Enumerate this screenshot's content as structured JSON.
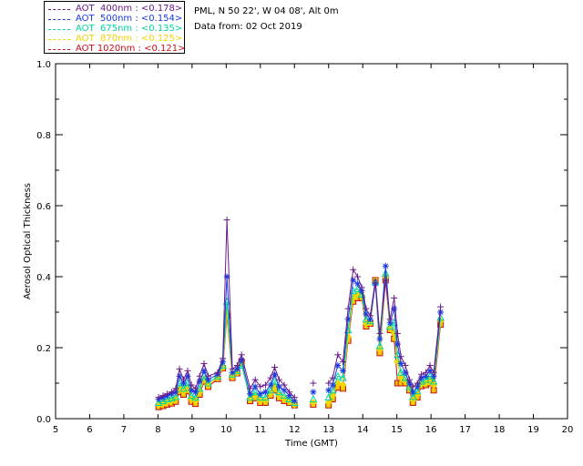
{
  "info": {
    "site": "PML, N 50 22', W 04 08', Alt 0m",
    "date": "Data from: 02 Oct 2019"
  },
  "legend": [
    {
      "label": "AOT  400nm : <0.178>",
      "color": "#6a1a8a"
    },
    {
      "label": "AOT  500nm : <0.154>",
      "color": "#1a3be0"
    },
    {
      "label": "AOT  675nm : <0.135>",
      "color": "#00d4a0"
    },
    {
      "label": "AOT  870nm : <0.125>",
      "color": "#f2d600"
    },
    {
      "label": "AOT 1020nm : <0.121>",
      "color": "#c8101a"
    }
  ],
  "chart_data": {
    "type": "line",
    "title": "",
    "xlabel": "Time (GMT)",
    "ylabel": "Aerosol Optical Thickness",
    "xlim": [
      5,
      20
    ],
    "ylim": [
      0,
      1.0
    ],
    "xticks": [
      "5",
      "6",
      "7",
      "8",
      "9",
      "10",
      "11",
      "12",
      "13",
      "14",
      "15",
      "16",
      "17",
      "18",
      "19",
      "20"
    ],
    "yticks": [
      "0.0",
      "0.2",
      "0.4",
      "0.6",
      "0.8",
      "1.0"
    ],
    "series": [
      {
        "name": "AOT  400nm : <0.178>",
        "color": "#6a1a8a",
        "marker": "plus",
        "points": [
          [
            8.02,
            0.06
          ],
          [
            8.15,
            0.065
          ],
          [
            8.27,
            0.07
          ],
          [
            8.4,
            0.075
          ],
          [
            8.52,
            0.085
          ],
          [
            8.63,
            0.14
          ],
          [
            8.75,
            0.11
          ],
          [
            8.87,
            0.135
          ],
          [
            8.98,
            0.095
          ],
          [
            9.1,
            0.085
          ],
          [
            9.22,
            0.12
          ],
          [
            9.35,
            0.155
          ],
          [
            9.47,
            0.12
          ],
          [
            9.75,
            0.13
          ],
          [
            9.9,
            0.17
          ],
          [
            10.02,
            0.56
          ],
          [
            10.18,
            0.14
          ],
          [
            10.32,
            0.15
          ],
          [
            10.45,
            0.18
          ],
          [
            10.7,
            0.085
          ],
          [
            10.85,
            0.11
          ],
          [
            11.0,
            0.09
          ],
          [
            11.15,
            0.095
          ],
          [
            11.3,
            0.115
          ],
          [
            11.42,
            0.145
          ],
          [
            11.55,
            0.11
          ],
          [
            11.7,
            0.095
          ],
          [
            11.85,
            0.075
          ],
          [
            12.0,
            0.06
          ],
          [
            12.55,
            0.1
          ],
          [
            13.0,
            0.1
          ],
          [
            13.12,
            0.115
          ],
          [
            13.27,
            0.18
          ],
          [
            13.42,
            0.16
          ],
          [
            13.57,
            0.31
          ],
          [
            13.72,
            0.42
          ],
          [
            13.85,
            0.4
          ],
          [
            13.97,
            0.37
          ],
          [
            14.1,
            0.31
          ],
          [
            14.22,
            0.29
          ],
          [
            14.37,
            0.39
          ],
          [
            14.5,
            0.24
          ],
          [
            14.67,
            0.39
          ],
          [
            14.8,
            0.28
          ],
          [
            14.92,
            0.34
          ],
          [
            15.02,
            0.24
          ],
          [
            15.12,
            0.175
          ],
          [
            15.25,
            0.15
          ],
          [
            15.37,
            0.11
          ],
          [
            15.47,
            0.09
          ],
          [
            15.6,
            0.1
          ],
          [
            15.72,
            0.125
          ],
          [
            15.85,
            0.13
          ],
          [
            15.97,
            0.15
          ],
          [
            16.08,
            0.13
          ],
          [
            16.28,
            0.315
          ]
        ]
      },
      {
        "name": "AOT  500nm : <0.154>",
        "color": "#1a3be0",
        "marker": "star",
        "points": [
          [
            8.02,
            0.055
          ],
          [
            8.15,
            0.06
          ],
          [
            8.27,
            0.065
          ],
          [
            8.4,
            0.07
          ],
          [
            8.52,
            0.075
          ],
          [
            8.63,
            0.12
          ],
          [
            8.75,
            0.1
          ],
          [
            8.87,
            0.12
          ],
          [
            8.98,
            0.08
          ],
          [
            9.1,
            0.075
          ],
          [
            9.22,
            0.105
          ],
          [
            9.35,
            0.135
          ],
          [
            9.47,
            0.11
          ],
          [
            9.75,
            0.125
          ],
          [
            9.9,
            0.16
          ],
          [
            10.02,
            0.4
          ],
          [
            10.18,
            0.13
          ],
          [
            10.32,
            0.14
          ],
          [
            10.45,
            0.165
          ],
          [
            10.7,
            0.07
          ],
          [
            10.85,
            0.09
          ],
          [
            11.0,
            0.07
          ],
          [
            11.15,
            0.075
          ],
          [
            11.3,
            0.095
          ],
          [
            11.42,
            0.125
          ],
          [
            11.55,
            0.09
          ],
          [
            11.7,
            0.08
          ],
          [
            11.85,
            0.065
          ],
          [
            12.0,
            0.05
          ],
          [
            12.55,
            0.075
          ],
          [
            13.0,
            0.08
          ],
          [
            13.12,
            0.095
          ],
          [
            13.27,
            0.15
          ],
          [
            13.42,
            0.135
          ],
          [
            13.57,
            0.28
          ],
          [
            13.72,
            0.39
          ],
          [
            13.85,
            0.38
          ],
          [
            13.97,
            0.36
          ],
          [
            14.1,
            0.295
          ],
          [
            14.22,
            0.28
          ],
          [
            14.37,
            0.38
          ],
          [
            14.5,
            0.225
          ],
          [
            14.67,
            0.43
          ],
          [
            14.8,
            0.27
          ],
          [
            14.92,
            0.31
          ],
          [
            15.02,
            0.21
          ],
          [
            15.12,
            0.155
          ],
          [
            15.25,
            0.13
          ],
          [
            15.37,
            0.1
          ],
          [
            15.47,
            0.075
          ],
          [
            15.6,
            0.09
          ],
          [
            15.72,
            0.115
          ],
          [
            15.85,
            0.12
          ],
          [
            15.97,
            0.135
          ],
          [
            16.08,
            0.12
          ],
          [
            16.28,
            0.3
          ]
        ]
      },
      {
        "name": "AOT  675nm : <0.135>",
        "color": "#00d4a0",
        "marker": "triangle",
        "points": [
          [
            8.02,
            0.045
          ],
          [
            8.15,
            0.05
          ],
          [
            8.27,
            0.055
          ],
          [
            8.4,
            0.058
          ],
          [
            8.52,
            0.062
          ],
          [
            8.63,
            0.1
          ],
          [
            8.75,
            0.085
          ],
          [
            8.87,
            0.1
          ],
          [
            8.98,
            0.065
          ],
          [
            9.1,
            0.06
          ],
          [
            9.22,
            0.085
          ],
          [
            9.35,
            0.12
          ],
          [
            9.47,
            0.1
          ],
          [
            9.75,
            0.12
          ],
          [
            9.9,
            0.15
          ],
          [
            10.02,
            0.33
          ],
          [
            10.18,
            0.125
          ],
          [
            10.32,
            0.135
          ],
          [
            10.45,
            0.15
          ],
          [
            10.7,
            0.06
          ],
          [
            10.85,
            0.075
          ],
          [
            11.0,
            0.06
          ],
          [
            11.15,
            0.06
          ],
          [
            11.3,
            0.08
          ],
          [
            11.42,
            0.105
          ],
          [
            11.55,
            0.075
          ],
          [
            11.7,
            0.065
          ],
          [
            11.85,
            0.055
          ],
          [
            12.0,
            0.045
          ],
          [
            12.55,
            0.055
          ],
          [
            13.0,
            0.06
          ],
          [
            13.12,
            0.08
          ],
          [
            13.27,
            0.12
          ],
          [
            13.42,
            0.115
          ],
          [
            13.57,
            0.25
          ],
          [
            13.72,
            0.36
          ],
          [
            13.85,
            0.365
          ],
          [
            13.97,
            0.35
          ],
          [
            14.1,
            0.28
          ],
          [
            14.22,
            0.275
          ],
          [
            14.37,
            0.385
          ],
          [
            14.5,
            0.205
          ],
          [
            14.67,
            0.41
          ],
          [
            14.8,
            0.26
          ],
          [
            14.92,
            0.27
          ],
          [
            15.02,
            0.18
          ],
          [
            15.12,
            0.13
          ],
          [
            15.25,
            0.115
          ],
          [
            15.37,
            0.09
          ],
          [
            15.47,
            0.062
          ],
          [
            15.6,
            0.078
          ],
          [
            15.72,
            0.105
          ],
          [
            15.85,
            0.11
          ],
          [
            15.97,
            0.12
          ],
          [
            16.08,
            0.105
          ],
          [
            16.28,
            0.285
          ]
        ]
      },
      {
        "name": "AOT  870nm : <0.125>",
        "color": "#f2d600",
        "marker": "diamond",
        "points": [
          [
            8.02,
            0.038
          ],
          [
            8.15,
            0.042
          ],
          [
            8.27,
            0.046
          ],
          [
            8.4,
            0.05
          ],
          [
            8.52,
            0.055
          ],
          [
            8.63,
            0.085
          ],
          [
            8.75,
            0.075
          ],
          [
            8.87,
            0.085
          ],
          [
            8.98,
            0.055
          ],
          [
            9.1,
            0.05
          ],
          [
            9.22,
            0.075
          ],
          [
            9.35,
            0.11
          ],
          [
            9.47,
            0.095
          ],
          [
            9.75,
            0.115
          ],
          [
            9.9,
            0.145
          ],
          [
            10.02,
            0.3
          ],
          [
            10.18,
            0.118
          ],
          [
            10.32,
            0.13
          ],
          [
            10.45,
            0.155
          ],
          [
            10.7,
            0.055
          ],
          [
            10.85,
            0.065
          ],
          [
            11.0,
            0.05
          ],
          [
            11.15,
            0.05
          ],
          [
            11.3,
            0.07
          ],
          [
            11.42,
            0.09
          ],
          [
            11.55,
            0.065
          ],
          [
            11.7,
            0.055
          ],
          [
            11.85,
            0.048
          ],
          [
            12.0,
            0.04
          ],
          [
            12.55,
            0.045
          ],
          [
            13.0,
            0.045
          ],
          [
            13.12,
            0.065
          ],
          [
            13.27,
            0.1
          ],
          [
            13.42,
            0.095
          ],
          [
            13.57,
            0.23
          ],
          [
            13.72,
            0.34
          ],
          [
            13.85,
            0.35
          ],
          [
            13.97,
            0.345
          ],
          [
            14.1,
            0.268
          ],
          [
            14.22,
            0.27
          ],
          [
            14.37,
            0.39
          ],
          [
            14.5,
            0.195
          ],
          [
            14.67,
            0.4
          ],
          [
            14.8,
            0.255
          ],
          [
            14.92,
            0.24
          ],
          [
            15.02,
            0.16
          ],
          [
            15.12,
            0.115
          ],
          [
            15.25,
            0.105
          ],
          [
            15.37,
            0.085
          ],
          [
            15.47,
            0.052
          ],
          [
            15.6,
            0.068
          ],
          [
            15.72,
            0.098
          ],
          [
            15.85,
            0.1
          ],
          [
            15.97,
            0.11
          ],
          [
            16.08,
            0.095
          ],
          [
            16.28,
            0.275
          ]
        ]
      },
      {
        "name": "AOT 1020nm : <0.121>",
        "color": "#c8101a",
        "marker": "square",
        "points": [
          [
            8.02,
            0.033
          ],
          [
            8.15,
            0.036
          ],
          [
            8.27,
            0.04
          ],
          [
            8.4,
            0.043
          ],
          [
            8.52,
            0.048
          ],
          [
            8.63,
            0.075
          ],
          [
            8.75,
            0.068
          ],
          [
            8.87,
            0.078
          ],
          [
            8.98,
            0.048
          ],
          [
            9.1,
            0.042
          ],
          [
            9.22,
            0.068
          ],
          [
            9.35,
            0.105
          ],
          [
            9.47,
            0.09
          ],
          [
            9.75,
            0.112
          ],
          [
            9.9,
            0.142
          ],
          [
            10.02,
            0.29
          ],
          [
            10.18,
            0.115
          ],
          [
            10.32,
            0.128
          ],
          [
            10.45,
            0.16
          ],
          [
            10.7,
            0.05
          ],
          [
            10.85,
            0.058
          ],
          [
            11.0,
            0.045
          ],
          [
            11.15,
            0.045
          ],
          [
            11.3,
            0.065
          ],
          [
            11.42,
            0.08
          ],
          [
            11.55,
            0.058
          ],
          [
            11.7,
            0.05
          ],
          [
            11.85,
            0.045
          ],
          [
            12.0,
            0.038
          ],
          [
            12.55,
            0.04
          ],
          [
            13.0,
            0.038
          ],
          [
            13.12,
            0.055
          ],
          [
            13.27,
            0.088
          ],
          [
            13.42,
            0.085
          ],
          [
            13.57,
            0.22
          ],
          [
            13.72,
            0.33
          ],
          [
            13.85,
            0.34
          ],
          [
            13.97,
            0.34
          ],
          [
            14.1,
            0.26
          ],
          [
            14.22,
            0.268
          ],
          [
            14.37,
            0.39
          ],
          [
            14.5,
            0.185
          ],
          [
            14.67,
            0.39
          ],
          [
            14.8,
            0.25
          ],
          [
            14.92,
            0.225
          ],
          [
            15.02,
            0.1
          ],
          [
            15.12,
            0.1
          ],
          [
            15.25,
            0.1
          ],
          [
            15.37,
            0.08
          ],
          [
            15.47,
            0.045
          ],
          [
            15.6,
            0.06
          ],
          [
            15.72,
            0.092
          ],
          [
            15.85,
            0.095
          ],
          [
            15.97,
            0.1
          ],
          [
            16.08,
            0.08
          ],
          [
            16.28,
            0.265
          ]
        ]
      }
    ]
  }
}
